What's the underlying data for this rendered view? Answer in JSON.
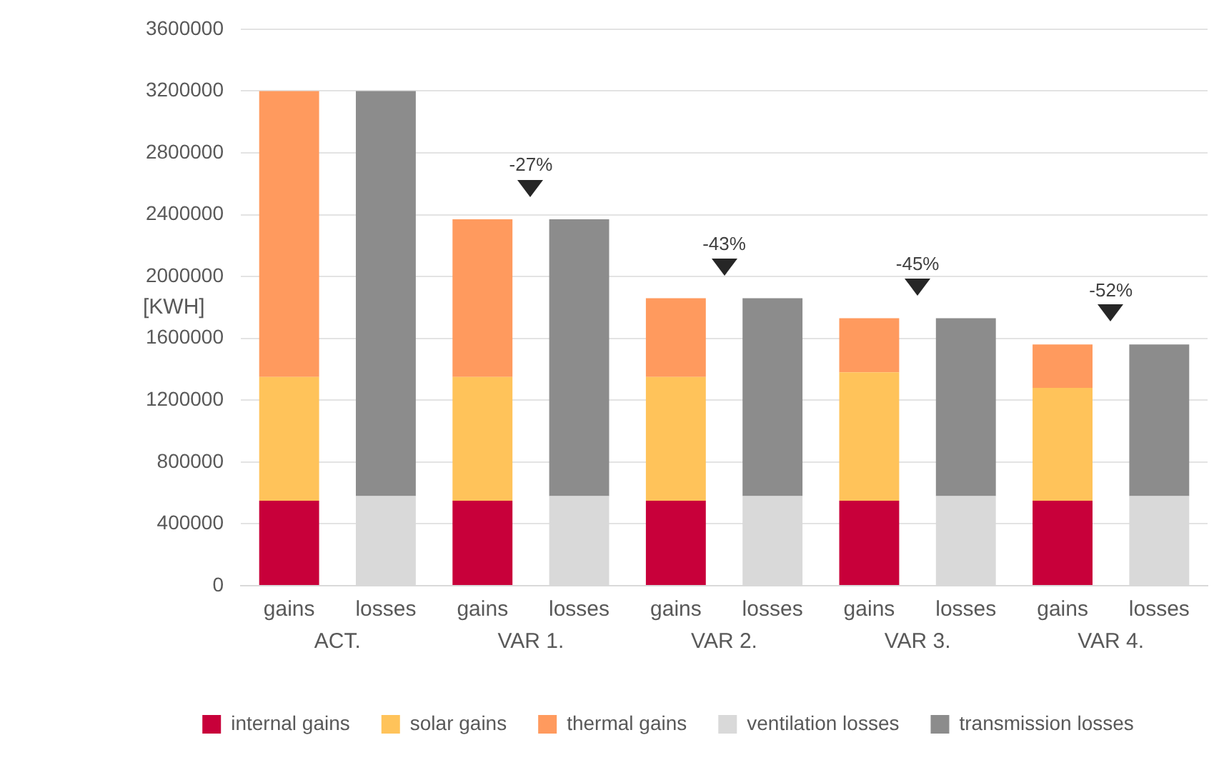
{
  "chart_data": {
    "type": "bar",
    "stacked": true,
    "ylabel": "[KWH]",
    "categories": [
      "gains",
      "losses",
      "gains",
      "losses",
      "gains",
      "losses",
      "gains",
      "losses",
      "gains",
      "losses"
    ],
    "series": [
      {
        "name": "internal gains",
        "color": "#c8003a",
        "values": [
          550000,
          null,
          550000,
          null,
          550000,
          null,
          550000,
          null,
          550000,
          null
        ]
      },
      {
        "name": "solar gains",
        "color": "#ffc35a",
        "values": [
          800000,
          null,
          800000,
          null,
          800000,
          null,
          830000,
          null,
          730000,
          null
        ]
      },
      {
        "name": "thermal gains",
        "color": "#ff9a5e",
        "values": [
          1850000,
          null,
          1020000,
          null,
          510000,
          null,
          350000,
          null,
          280000,
          null
        ]
      },
      {
        "name": "ventilation losses",
        "color": "#d9d9d9",
        "values": [
          null,
          580000,
          null,
          580000,
          null,
          580000,
          null,
          580000,
          null,
          580000
        ]
      },
      {
        "name": "transmission losses",
        "color": "#8c8c8c",
        "values": [
          null,
          2620000,
          null,
          1790000,
          null,
          1280000,
          null,
          1150000,
          null,
          980000
        ]
      }
    ],
    "ylim": [
      0,
      3600000
    ],
    "yticks": [
      0,
      400000,
      800000,
      1200000,
      1600000,
      2000000,
      2400000,
      2800000,
      3200000,
      3600000
    ],
    "grid": "y",
    "legend": "bottom",
    "annotations": [
      "ACT.",
      "VAR 1.",
      "VAR 2.",
      "VAR 3.",
      "VAR 4.",
      "-27%",
      "-43%",
      "-45%",
      "-52%"
    ]
  }
}
